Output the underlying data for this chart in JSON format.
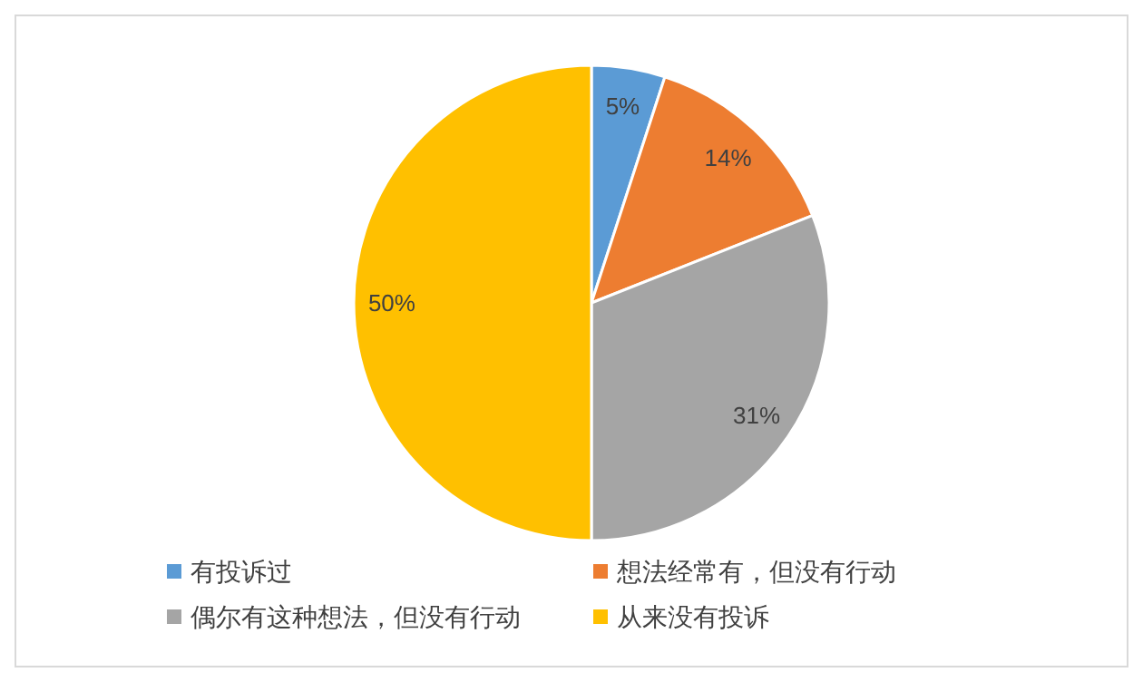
{
  "chart_data": {
    "type": "pie",
    "categories": [
      "有投诉过",
      "想法经常有，但没有行动",
      "偶尔有这种想法，但没有行动",
      "从来没有投诉"
    ],
    "values": [
      5,
      14,
      31,
      50
    ],
    "colors": [
      "#5b9bd5",
      "#ed7d31",
      "#a5a5a5",
      "#ffc000"
    ],
    "value_labels": [
      "5%",
      "14%",
      "31%",
      "50%"
    ],
    "legend": "bottom"
  }
}
